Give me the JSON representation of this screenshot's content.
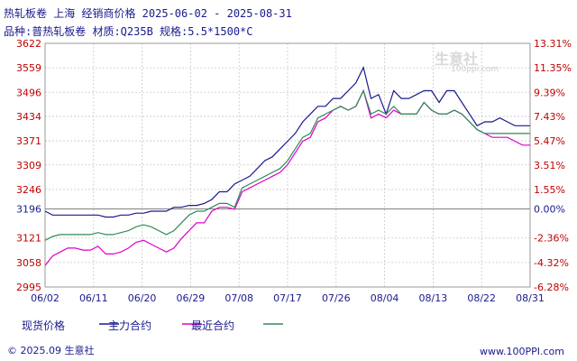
{
  "header": {
    "title": "热轧板卷 上海 经销商价格 2025-06-02 - 2025-08-31",
    "subtitle": "品种:普热轧板卷 材质:Q235B 规格:5.5*1500*C"
  },
  "watermark": {
    "brand": "生意社",
    "url": "100ppi.com"
  },
  "footer": {
    "copyright": "© 2025.09 生意社",
    "url": "www.100PPI.com"
  },
  "colors": {
    "spot": "#1a1a8c",
    "main_contract": "#e000c8",
    "recent_contract": "#2e8b57",
    "left_axis_text": "#c00000",
    "right_axis_text": "#c00000",
    "zero_line": "#808080",
    "grid": "#c8c8c8"
  },
  "chart_data": {
    "type": "line",
    "x_tick_labels": [
      "06/02",
      "06/11",
      "06/20",
      "06/29",
      "07/08",
      "07/17",
      "07/26",
      "08/04",
      "08/13",
      "08/22",
      "08/31"
    ],
    "y_left_ticks": [
      3622,
      3559,
      3496,
      3434,
      3371,
      3309,
      3246,
      3196,
      3121,
      3058,
      2995
    ],
    "y_right_ticks": [
      "13.31%",
      "11.35%",
      "9.39%",
      "7.43%",
      "5.47%",
      "3.51%",
      "1.55%",
      "0.00%",
      "-2.36%",
      "-4.32%",
      "-6.28%"
    ],
    "ylim": [
      2995,
      3622
    ],
    "base_value": 3196,
    "legend": [
      {
        "key": "spot",
        "label": "现货价格"
      },
      {
        "key": "main_contract",
        "label": "主力合约"
      },
      {
        "key": "recent_contract",
        "label": "最近合约"
      }
    ],
    "x": [
      "06/02",
      "06/03",
      "06/04",
      "06/05",
      "06/06",
      "06/09",
      "06/10",
      "06/11",
      "06/12",
      "06/13",
      "06/16",
      "06/17",
      "06/18",
      "06/19",
      "06/20",
      "06/23",
      "06/24",
      "06/25",
      "06/26",
      "06/27",
      "06/30",
      "07/01",
      "07/02",
      "07/03",
      "07/04",
      "07/07",
      "07/08",
      "07/09",
      "07/10",
      "07/11",
      "07/14",
      "07/15",
      "07/16",
      "07/17",
      "07/18",
      "07/21",
      "07/22",
      "07/23",
      "07/24",
      "07/25",
      "07/28",
      "07/29",
      "07/30",
      "07/31",
      "08/01",
      "08/04",
      "08/05",
      "08/06",
      "08/07",
      "08/08",
      "08/11",
      "08/12",
      "08/13",
      "08/14",
      "08/15",
      "08/18",
      "08/19",
      "08/20",
      "08/21",
      "08/22",
      "08/25",
      "08/26",
      "08/27",
      "08/28",
      "08/29"
    ],
    "series": [
      {
        "key": "spot",
        "name": "现货价格",
        "values": [
          3190,
          3180,
          3180,
          3180,
          3180,
          3180,
          3180,
          3180,
          3175,
          3175,
          3180,
          3180,
          3185,
          3185,
          3190,
          3190,
          3190,
          3200,
          3200,
          3205,
          3205,
          3210,
          3220,
          3240,
          3240,
          3260,
          3270,
          3280,
          3300,
          3320,
          3330,
          3350,
          3370,
          3390,
          3420,
          3440,
          3460,
          3460,
          3480,
          3480,
          3500,
          3520,
          3560,
          3480,
          3490,
          3440,
          3500,
          3480,
          3480,
          3490,
          3500,
          3500,
          3470,
          3500,
          3500,
          3470,
          3440,
          3410,
          3420,
          3420,
          3430,
          3420,
          3410,
          3410,
          3410
        ]
      },
      {
        "key": "main_contract",
        "name": "主力合约",
        "values": [
          3050,
          3075,
          3085,
          3095,
          3095,
          3090,
          3090,
          3100,
          3080,
          3080,
          3085,
          3095,
          3110,
          3115,
          3105,
          3095,
          3085,
          3095,
          3120,
          3140,
          3160,
          3160,
          3190,
          3200,
          3200,
          3195,
          3240,
          3250,
          3260,
          3270,
          3280,
          3290,
          3310,
          3340,
          3370,
          3380,
          3420,
          3430,
          3450,
          3460,
          3450,
          3460,
          3500,
          3430,
          3440,
          3430,
          3450,
          3440,
          3440,
          3440,
          3470,
          3450,
          3440,
          3440,
          3450,
          3440,
          3420,
          3400,
          3390,
          3380,
          3380,
          3380,
          3370,
          3360,
          3360
        ]
      },
      {
        "key": "recent_contract",
        "name": "最近合约",
        "values": [
          3115,
          3125,
          3130,
          3130,
          3130,
          3130,
          3130,
          3135,
          3130,
          3130,
          3135,
          3140,
          3150,
          3155,
          3150,
          3140,
          3130,
          3140,
          3160,
          3180,
          3190,
          3190,
          3200,
          3210,
          3210,
          3200,
          3250,
          3260,
          3270,
          3280,
          3290,
          3300,
          3320,
          3350,
          3380,
          3390,
          3430,
          3440,
          3450,
          3460,
          3450,
          3460,
          3500,
          3440,
          3450,
          3440,
          3460,
          3440,
          3440,
          3440,
          3470,
          3450,
          3440,
          3440,
          3450,
          3440,
          3420,
          3400,
          3390,
          3390,
          3390,
          3390,
          3390,
          3390,
          3390
        ]
      }
    ]
  }
}
